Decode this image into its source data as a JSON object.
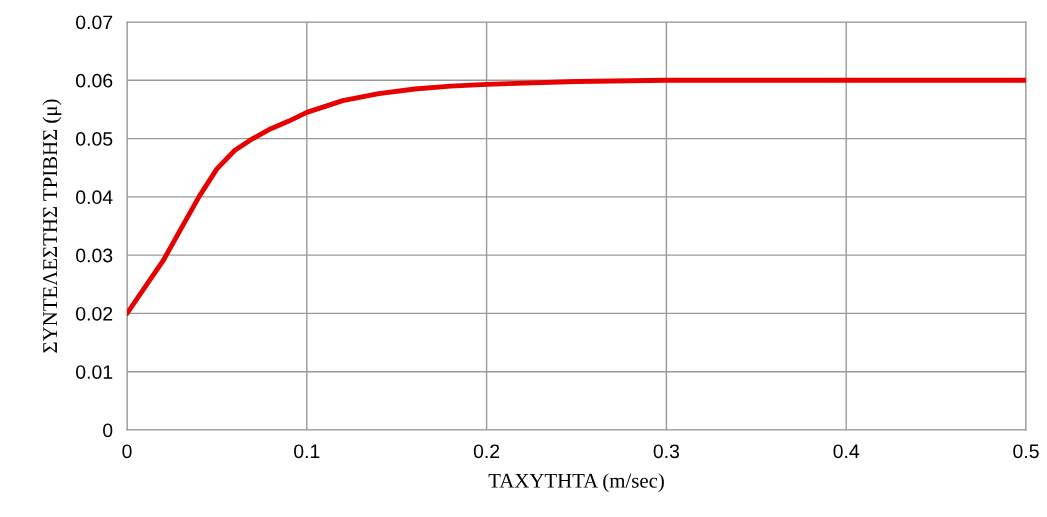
{
  "chart_data": {
    "type": "line",
    "xlabel": "ΤΑΧΥΤΗΤΑ (m/sec)",
    "ylabel": "ΣΥΝΤΕΛΕΣΤΗΣ ΤΡΙΒΗΣ (μ)",
    "x": [
      0,
      0.01,
      0.02,
      0.03,
      0.04,
      0.05,
      0.06,
      0.07,
      0.08,
      0.09,
      0.1,
      0.12,
      0.14,
      0.16,
      0.18,
      0.2,
      0.25,
      0.3,
      0.4,
      0.5
    ],
    "series": [
      {
        "color": "#e60000",
        "values": [
          0.02,
          0.0245,
          0.029,
          0.0345,
          0.04,
          0.0448,
          0.048,
          0.05,
          0.0517,
          0.053,
          0.0545,
          0.0565,
          0.0577,
          0.0585,
          0.059,
          0.0593,
          0.0598,
          0.06,
          0.06,
          0.06
        ]
      }
    ],
    "xlim": [
      0,
      0.5
    ],
    "xticks": [
      0,
      0.1,
      0.2,
      0.3,
      0.4,
      0.5
    ],
    "ylim": [
      0,
      0.07
    ],
    "yticks": [
      0,
      0.01,
      0.02,
      0.03,
      0.04,
      0.05,
      0.06,
      0.07
    ],
    "grid": true,
    "marker": "none",
    "line_style": "solid"
  }
}
